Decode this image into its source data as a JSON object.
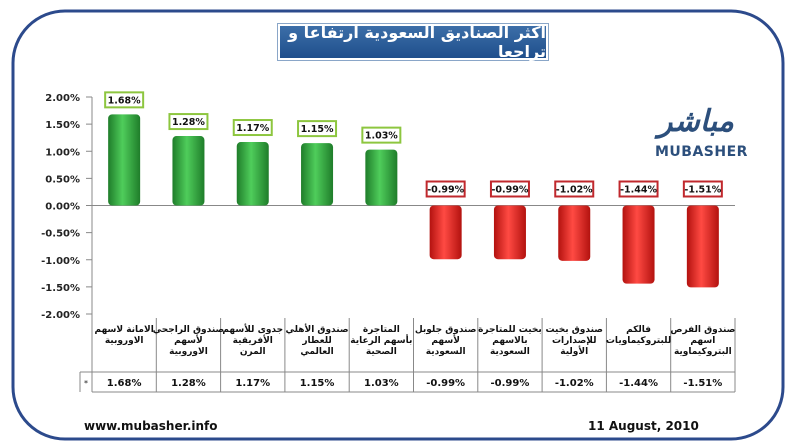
{
  "title": "اكثر الصناديق السعودية ارتفاعا و تراجعا",
  "logo": {
    "arabic": "مباشر",
    "english": "MUBASHER"
  },
  "footer": {
    "website": "www.mubasher.info",
    "date": "11 August, 2010"
  },
  "colors": {
    "positive": "#2ea33a",
    "negative": "#e52420",
    "frame": "#2c4a8c",
    "positive_label_border": "#8dc63f",
    "negative_label_border": "#c0282d"
  },
  "chart_data": {
    "type": "bar",
    "categories": [
      "الامانة لاسهم الاوروبية",
      "صندوق الراجحي لأسهم الاوروبية",
      "جدوى للأسهم الأفريقية المرن",
      "صندوق الأهلي للعطار العالمي",
      "المتاجرة بأسهم الرعاية الصحية",
      "صندوق جلوبل لأسهم السعودية",
      "بخيت للمتاجرة بالاسهم السعودية",
      "صندوق بخيت للإصدارات الأولية",
      "فالكم للبتروكيماويات",
      "صندوق الفرص اسهم البتروكيماوية"
    ],
    "values": [
      1.68,
      1.28,
      1.17,
      1.15,
      1.03,
      -0.99,
      -0.99,
      -1.02,
      -1.44,
      -1.51
    ],
    "value_labels": [
      "1.68%",
      "1.28%",
      "1.17%",
      "1.15%",
      "1.03%",
      "-0.99%",
      "-0.99%",
      "-1.02%",
      "-1.44%",
      "-1.51%"
    ],
    "yticks": [
      "2.00%",
      "1.50%",
      "1.00%",
      "0.50%",
      "0.00%",
      "-0.50%",
      "-1.00%",
      "-1.50%",
      "-2.00%"
    ],
    "ylim": [
      -2.0,
      2.0
    ],
    "table_marker": "*",
    "legend": "none",
    "grid": false
  }
}
